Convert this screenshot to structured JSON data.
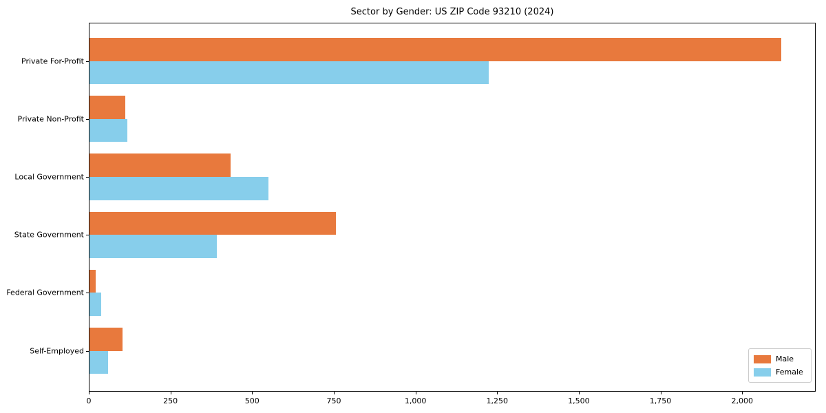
{
  "chart_data": {
    "type": "bar",
    "orientation": "horizontal",
    "title": "Sector by Gender: US ZIP Code 93210 (2024)",
    "xlabel": "",
    "ylabel": "",
    "categories": [
      "Private For-Profit",
      "Private Non-Profit",
      "Local Government",
      "State Government",
      "Federal Government",
      "Self-Employed"
    ],
    "series": [
      {
        "name": "Male",
        "color": "#e8793d",
        "values": [
          2120,
          111,
          434,
          756,
          21,
          103
        ]
      },
      {
        "name": "Female",
        "color": "#87ceeb",
        "values": [
          1224,
          118,
          550,
          392,
          38,
          59
        ]
      }
    ],
    "xlim": [
      0,
      2225
    ],
    "xticks": [
      0,
      250,
      500,
      750,
      1000,
      1250,
      1500,
      1750,
      2000
    ],
    "xtick_labels": [
      "0",
      "250",
      "500",
      "750",
      "1,000",
      "1,250",
      "1,500",
      "1,750",
      "2,000"
    ],
    "grid": false,
    "legend": {
      "position": "lower right",
      "entries": [
        "Male",
        "Female"
      ]
    },
    "colors": {
      "background": "#ffffff",
      "spine": "#000000",
      "legend_border": "#cccccc"
    }
  }
}
